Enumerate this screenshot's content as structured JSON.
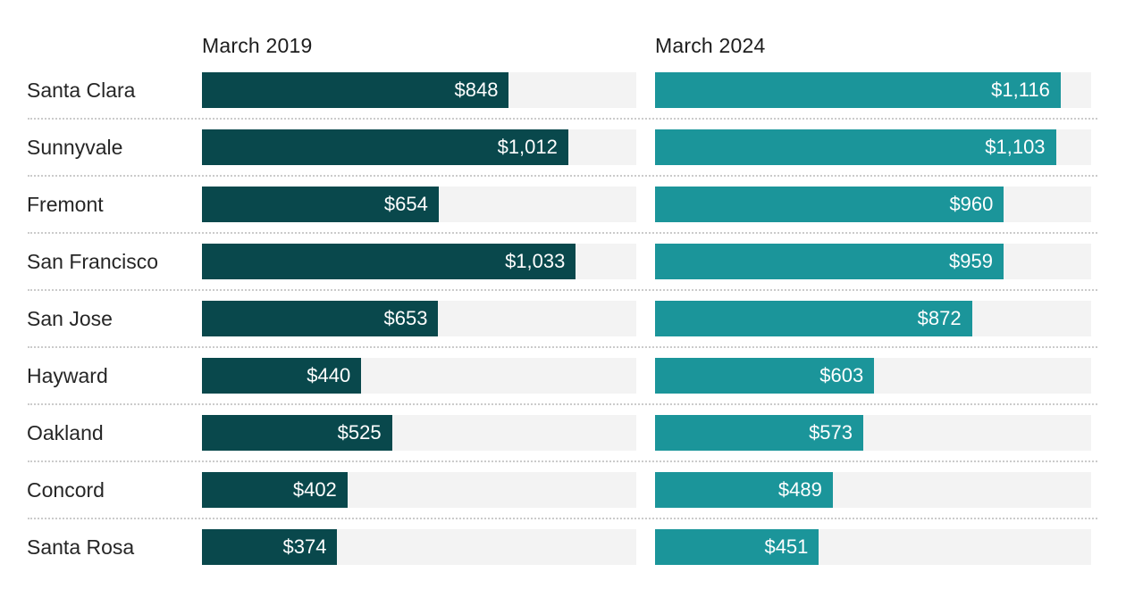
{
  "chart_data": {
    "type": "bar",
    "title": "",
    "xlabel": "",
    "ylabel": "",
    "xmax": 1200,
    "grid": "dotted row separators",
    "legend_position": "column headers above each bar group",
    "columns": [
      "March 2019",
      "March 2024"
    ],
    "categories": [
      "Santa Clara",
      "Sunnyvale",
      "Fremont",
      "San Francisco",
      "San Jose",
      "Hayward",
      "Oakland",
      "Concord",
      "Santa Rosa"
    ],
    "series": [
      {
        "name": "March 2019",
        "values": [
          848,
          1012,
          654,
          1033,
          653,
          440,
          525,
          402,
          374
        ]
      },
      {
        "name": "March 2024",
        "values": [
          1116,
          1103,
          960,
          959,
          872,
          603,
          573,
          489,
          451
        ]
      }
    ],
    "colors": {
      "bar_2019": "#09484c",
      "bar_2024": "#1b959a",
      "track": "#f3f3f3"
    },
    "rows": [
      {
        "city": "Santa Clara",
        "v2019": 848,
        "label2019": "$848",
        "v2024": 1116,
        "label2024": "$1,116"
      },
      {
        "city": "Sunnyvale",
        "v2019": 1012,
        "label2019": "$1,012",
        "v2024": 1103,
        "label2024": "$1,103"
      },
      {
        "city": "Fremont",
        "v2019": 654,
        "label2019": "$654",
        "v2024": 960,
        "label2024": "$960"
      },
      {
        "city": "San Francisco",
        "v2019": 1033,
        "label2019": "$1,033",
        "v2024": 959,
        "label2024": "$959"
      },
      {
        "city": "San Jose",
        "v2019": 653,
        "label2019": "$653",
        "v2024": 872,
        "label2024": "$872"
      },
      {
        "city": "Hayward",
        "v2019": 440,
        "label2019": "$440",
        "v2024": 603,
        "label2024": "$603"
      },
      {
        "city": "Oakland",
        "v2019": 525,
        "label2019": "$525",
        "v2024": 573,
        "label2024": "$573"
      },
      {
        "city": "Concord",
        "v2019": 402,
        "label2019": "$402",
        "v2024": 489,
        "label2024": "$489"
      },
      {
        "city": "Santa Rosa",
        "v2019": 374,
        "label2019": "$374",
        "v2024": 451,
        "label2024": "$451"
      }
    ]
  }
}
